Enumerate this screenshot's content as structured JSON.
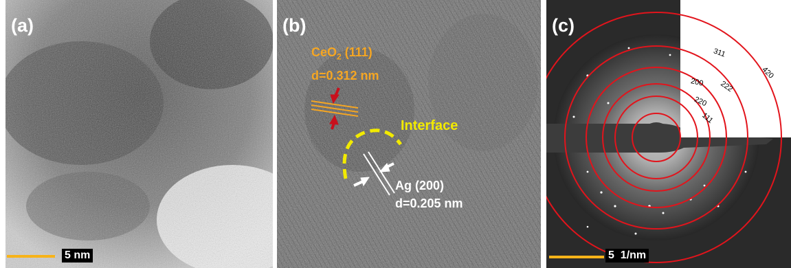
{
  "panels": {
    "a": {
      "label": "(a)",
      "scale": "5 nm"
    },
    "b": {
      "label": "(b)",
      "ceo2_title_main": "CeO",
      "ceo2_title_sub": "2",
      "ceo2_title_rest": " (111)",
      "ceo2_d": "d=0.312 nm",
      "interface": "Interface",
      "ag_title": "Ag (200)",
      "ag_d": "d=0.205 nm"
    },
    "c": {
      "label": "(c)",
      "scale": "5  1/nm",
      "rings": [
        "111",
        "220",
        "200",
        "222",
        "311",
        "420"
      ]
    }
  },
  "colors": {
    "ceo2": "#f5a623",
    "interface": "#f2ea00",
    "arrow_red": "#c8101c",
    "ring_red": "#e2141c",
    "scale": "#f7b319"
  }
}
